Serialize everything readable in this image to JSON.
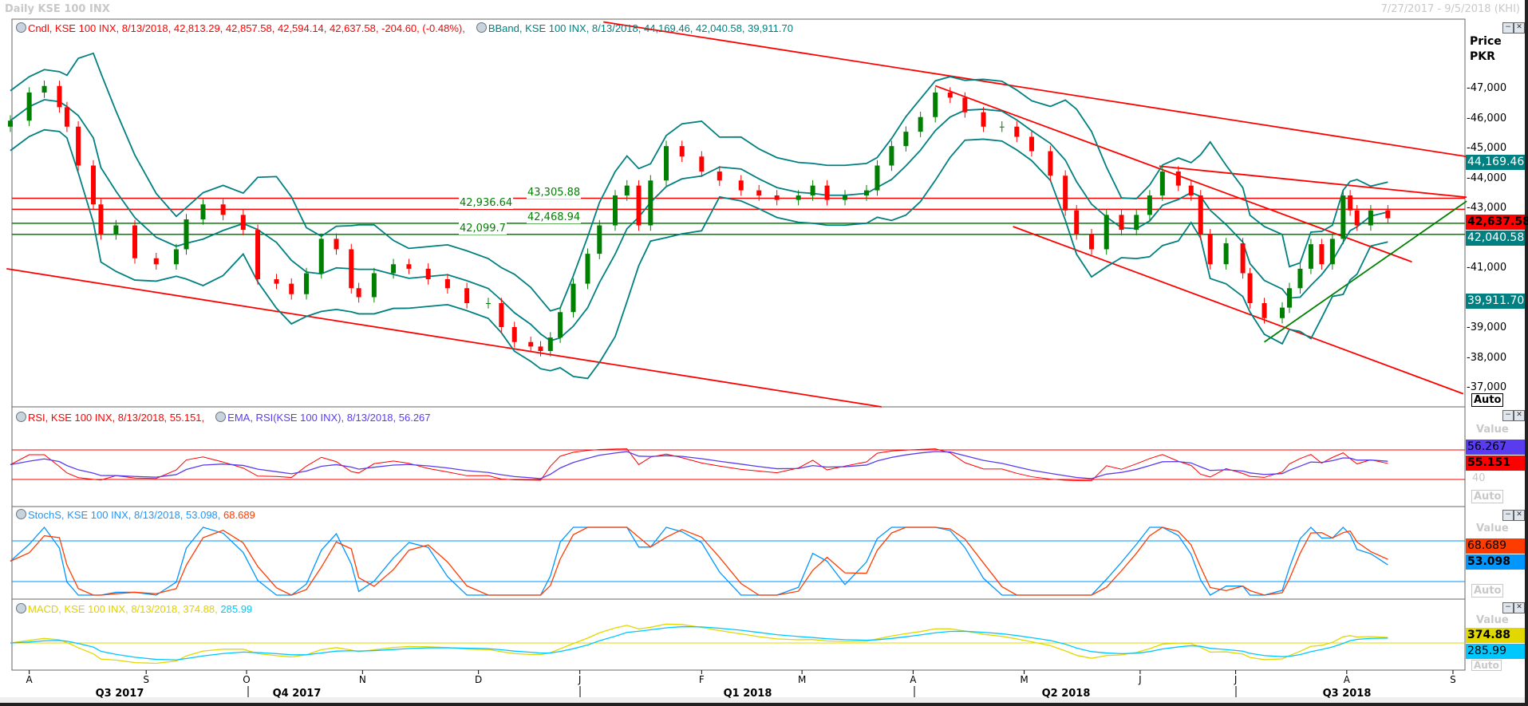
{
  "window": {
    "title": "Daily KSE 100 INX",
    "date_range": "7/27/2017 - 9/5/2018 (KHI)"
  },
  "legends": {
    "candle": "Cndl, KSE 100 INX, 8/13/2018, 42,813.29, 42,857.58, 42,594.14, 42,637.58, -204.60, (-0.48%),",
    "bband": "BBand, KSE 100 INX, 8/13/2018, 44,169.46, 42,040.58, 39,911.70",
    "rsi": "RSI, KSE 100 INX, 8/13/2018, 55.151,",
    "ema": "EMA, RSI(KSE 100 INX), 8/13/2018, 56.267",
    "stoch": "StochS, KSE 100 INX, 8/13/2018, 53.098,",
    "stoch_d": "68.689",
    "macd": "MACD, KSE 100 INX, 8/13/2018, 374.88,",
    "macd_signal": "285.99"
  },
  "axis": {
    "price_title": "Price",
    "currency": "PKR",
    "price_ticks": [
      "47,000",
      "46,000",
      "45,000",
      "44,000",
      "43,000",
      "41,000",
      "39,000",
      "38,000",
      "37,000"
    ],
    "price_tick_values": [
      47000,
      46000,
      45000,
      44000,
      43000,
      41000,
      39000,
      38000,
      37000
    ],
    "auto": "Auto",
    "value": "Value",
    "rsi_tick": "40",
    "months": [
      "A",
      "S",
      "O",
      "N",
      "D",
      "J",
      "F",
      "M",
      "A",
      "M",
      "J",
      "J",
      "A",
      "S"
    ],
    "quarters": [
      "Q3 2017",
      "Q4 2017",
      "Q1 2018",
      "Q2 2018",
      "Q3 2018"
    ]
  },
  "last_values": {
    "bb_upper": "44,169.46",
    "close": "42,637.58",
    "bb_mid": "42,040.58",
    "bb_lower": "39,911.70",
    "ema": "56.267",
    "rsi": "55.151",
    "stoch_d": "68.689",
    "stoch_k": "53.098",
    "macd": "374.88",
    "signal": "285.99"
  },
  "colors": {
    "up": "#008000",
    "down": "#ff0000",
    "bband": "#008080",
    "rsi": "#ff0000",
    "ema": "#5a3cf0",
    "stoch_k": "#0096ff",
    "stoch_d": "#ff3c00",
    "macd": "#e0d800",
    "signal": "#00c8ff",
    "trend": "#ff0000",
    "support": "#008000"
  },
  "chart_data": {
    "type": "candlestick",
    "title": "Daily KSE 100 INX",
    "ylabel": "Price PKR",
    "ylim": [
      36500,
      49500
    ],
    "xlim": [
      "2017-07-27",
      "2018-09-05"
    ],
    "close": [
      [
        "2017-07-27",
        45900
      ],
      [
        "2017-08-01",
        46840
      ],
      [
        "2017-08-05",
        47060
      ],
      [
        "2017-08-09",
        46350
      ],
      [
        "2017-08-11",
        45700
      ],
      [
        "2017-08-14",
        44400
      ],
      [
        "2017-08-18",
        43100
      ],
      [
        "2017-08-20",
        42100
      ],
      [
        "2017-08-24",
        42400
      ],
      [
        "2017-08-29",
        41300
      ],
      [
        "2017-09-04",
        41100
      ],
      [
        "2017-09-10",
        41600
      ],
      [
        "2017-09-13",
        42600
      ],
      [
        "2017-09-18",
        43100
      ],
      [
        "2017-09-24",
        42750
      ],
      [
        "2017-09-30",
        42250
      ],
      [
        "2017-10-04",
        40600
      ],
      [
        "2017-10-09",
        40450
      ],
      [
        "2017-10-13",
        40100
      ],
      [
        "2017-10-17",
        40800
      ],
      [
        "2017-10-21",
        41950
      ],
      [
        "2017-10-25",
        41600
      ],
      [
        "2017-10-29",
        40300
      ],
      [
        "2017-10-31",
        40000
      ],
      [
        "2017-11-04",
        40800
      ],
      [
        "2017-11-09",
        41100
      ],
      [
        "2017-11-13",
        40950
      ],
      [
        "2017-11-18",
        40600
      ],
      [
        "2017-11-23",
        40300
      ],
      [
        "2017-11-28",
        39800
      ],
      [
        "2017-12-04",
        39800
      ],
      [
        "2017-12-08",
        39000
      ],
      [
        "2017-12-12",
        38500
      ],
      [
        "2017-12-17",
        38350
      ],
      [
        "2017-12-20",
        38200
      ],
      [
        "2017-12-23",
        38650
      ],
      [
        "2017-12-26",
        39500
      ],
      [
        "2017-12-30",
        40450
      ],
      [
        "2018-01-03",
        41450
      ],
      [
        "2018-01-06",
        42400
      ],
      [
        "2018-01-10",
        43400
      ],
      [
        "2018-01-13",
        43730
      ],
      [
        "2018-01-16",
        42400
      ],
      [
        "2018-01-19",
        43900
      ],
      [
        "2018-01-23",
        45050
      ],
      [
        "2018-01-27",
        44700
      ],
      [
        "2018-02-01",
        44200
      ],
      [
        "2018-02-06",
        43900
      ],
      [
        "2018-02-12",
        43570
      ],
      [
        "2018-02-17",
        43400
      ],
      [
        "2018-02-22",
        43250
      ],
      [
        "2018-02-28",
        43400
      ],
      [
        "2018-03-04",
        43730
      ],
      [
        "2018-03-08",
        43250
      ],
      [
        "2018-03-13",
        43400
      ],
      [
        "2018-03-19",
        43570
      ],
      [
        "2018-03-22",
        44400
      ],
      [
        "2018-03-26",
        45050
      ],
      [
        "2018-03-30",
        45530
      ],
      [
        "2018-04-03",
        46020
      ],
      [
        "2018-04-07",
        46840
      ],
      [
        "2018-04-11",
        46670
      ],
      [
        "2018-04-15",
        46180
      ],
      [
        "2018-04-20",
        45700
      ],
      [
        "2018-04-25",
        45700
      ],
      [
        "2018-04-29",
        45360
      ],
      [
        "2018-05-03",
        44880
      ],
      [
        "2018-05-08",
        44060
      ],
      [
        "2018-05-12",
        42900
      ],
      [
        "2018-05-15",
        42100
      ],
      [
        "2018-05-19",
        41600
      ],
      [
        "2018-05-23",
        42750
      ],
      [
        "2018-05-27",
        42250
      ],
      [
        "2018-05-31",
        42750
      ],
      [
        "2018-06-04",
        43400
      ],
      [
        "2018-06-08",
        44200
      ],
      [
        "2018-06-13",
        43730
      ],
      [
        "2018-06-17",
        43400
      ],
      [
        "2018-06-20",
        42100
      ],
      [
        "2018-06-23",
        41100
      ],
      [
        "2018-06-28",
        41800
      ],
      [
        "2018-07-03",
        40800
      ],
      [
        "2018-07-05",
        39800
      ],
      [
        "2018-07-09",
        39300
      ],
      [
        "2018-07-14",
        39650
      ],
      [
        "2018-07-16",
        40300
      ],
      [
        "2018-07-19",
        40950
      ],
      [
        "2018-07-22",
        41770
      ],
      [
        "2018-07-25",
        41100
      ],
      [
        "2018-07-28",
        41950
      ],
      [
        "2018-07-31",
        43400
      ],
      [
        "2018-08-02",
        42900
      ],
      [
        "2018-08-04",
        42400
      ],
      [
        "2018-08-08",
        42900
      ],
      [
        "2018-08-13",
        42637.58
      ]
    ],
    "levels": [
      {
        "value": 43305.88,
        "label": "43,305.88",
        "color": "#ff0000"
      },
      {
        "value": 42936.64,
        "label": "42,936.64",
        "color": "#ff0000"
      },
      {
        "value": 42468.94,
        "label": "42,468.94",
        "color": "#008000"
      },
      {
        "value": 42099.7,
        "label": "42,099.7",
        "color": "#008000"
      }
    ],
    "trendlines": [
      {
        "from": [
          "2018-01-07",
          49200
        ],
        "to": [
          "2018-09-05",
          44700
        ],
        "color": "#ff0000"
      },
      {
        "from": [
          "2017-07-26",
          40950
        ],
        "to": [
          "2018-03-26",
          36280
        ],
        "color": "#ff0000"
      },
      {
        "from": [
          "2018-04-07",
          47065
        ],
        "to": [
          "2018-08-20",
          41180
        ],
        "color": "#ff0000"
      },
      {
        "from": [
          "2018-04-28",
          42360
        ],
        "to": [
          "2018-09-04",
          36770
        ],
        "color": "#ff0000"
      },
      {
        "from": [
          "2018-06-07",
          44380
        ],
        "to": [
          "2018-09-05",
          43340
        ],
        "color": "#ff0000"
      },
      {
        "from": [
          "2018-07-09",
          38500
        ],
        "to": [
          "2018-09-05",
          43210
        ],
        "color": "#008000"
      }
    ],
    "indicators": {
      "rsi_levels": [
        70,
        30
      ],
      "stoch_levels": [
        80,
        20
      ],
      "macd_zero": 0
    }
  }
}
